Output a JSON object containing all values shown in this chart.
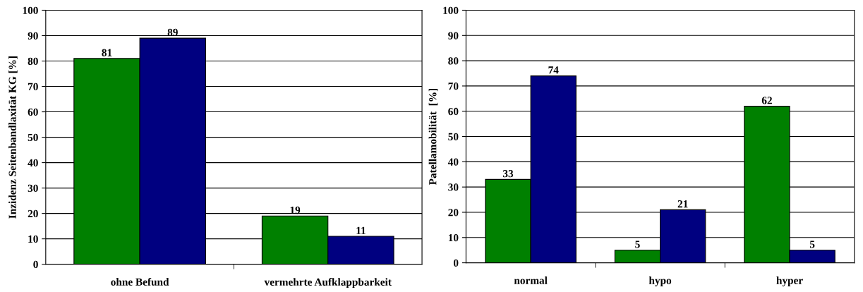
{
  "chart_data": [
    {
      "type": "bar",
      "ylabel": "Inzidenz Seitenbandlaxität KG [%]",
      "categories": [
        "ohne Befund",
        "vermehrte Aufklappbarkeit"
      ],
      "series": [
        {
          "color": "#008000",
          "values": [
            81,
            19
          ]
        },
        {
          "color": "#000080",
          "values": [
            89,
            11
          ]
        }
      ],
      "ylim": [
        0,
        100
      ],
      "yticks": [
        0,
        10,
        20,
        30,
        40,
        50,
        60,
        70,
        80,
        90,
        100
      ],
      "grid": "y",
      "data_labels": true
    },
    {
      "type": "bar",
      "ylabel": "Patellamobilität  [%]",
      "categories": [
        "normal",
        "hypo",
        "hyper"
      ],
      "series": [
        {
          "color": "#008000",
          "values": [
            33,
            5,
            62
          ]
        },
        {
          "color": "#000080",
          "values": [
            74,
            21,
            5
          ]
        }
      ],
      "ylim": [
        0,
        100
      ],
      "yticks": [
        0,
        10,
        20,
        30,
        40,
        50,
        60,
        70,
        80,
        90,
        100
      ],
      "grid": "y",
      "data_labels": true
    }
  ]
}
